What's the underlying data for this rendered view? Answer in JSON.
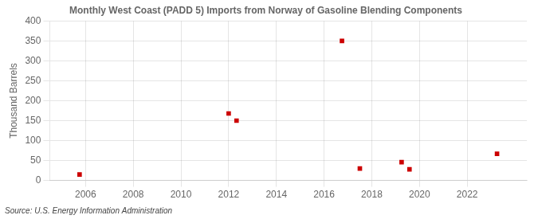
{
  "chart_data": {
    "type": "scatter",
    "title": "Monthly West Coast (PADD 5) Imports from Norway of Gasoline Blending Components",
    "y_label": "Thousand Barrels",
    "annotations": [
      "Source: U.S. Energy Information Administration"
    ],
    "x": [
      2005.75,
      2012.0,
      2012.33,
      2016.75,
      2017.5,
      2019.25,
      2019.58,
      2023.25
    ],
    "values": [
      15,
      168,
      150,
      350,
      30,
      46,
      28,
      67
    ],
    "color": "#cc0000",
    "marker": "square",
    "xlim": [
      2004.5,
      2024.5
    ],
    "ylim": [
      0,
      400
    ],
    "xticks": [
      2006,
      2008,
      2010,
      2012,
      2014,
      2016,
      2018,
      2020,
      2022
    ],
    "yticks": [
      0,
      50,
      100,
      150,
      200,
      250,
      300,
      350,
      400
    ],
    "grid": true
  }
}
